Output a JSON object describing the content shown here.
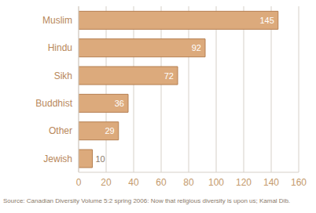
{
  "chart_data": {
    "type": "bar",
    "orientation": "horizontal",
    "categories": [
      "Muslim",
      "Hindu",
      "Sikh",
      "Buddhist",
      "Other",
      "Jewish"
    ],
    "values": [
      145,
      92,
      72,
      36,
      29,
      10
    ],
    "color": "#dcaa7c",
    "xlim": [
      0,
      160
    ],
    "xticks": [
      0,
      20,
      40,
      60,
      80,
      100,
      120,
      140,
      160
    ],
    "grid": true,
    "data_labels": true,
    "annotations": [
      "Source: Canadian Diversity Volume 5:2 spring 2006: Now that religious diversity is upon us; Kamal Dib."
    ]
  }
}
